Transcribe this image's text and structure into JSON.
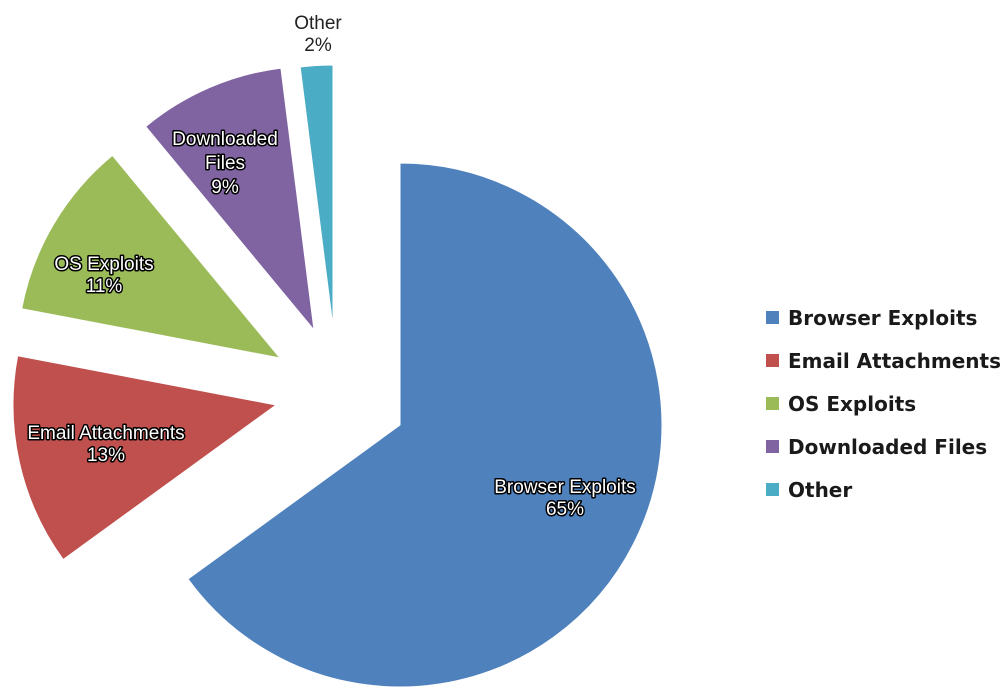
{
  "chart_data": {
    "type": "pie",
    "title": "",
    "slices": [
      {
        "name": "Browser Exploits",
        "value": 65,
        "label": "Browser Exploits",
        "pct_label": "65%",
        "color": "#4f81bd"
      },
      {
        "name": "Email Attachments",
        "value": 13,
        "label": "Email Attachments",
        "pct_label": "13%",
        "color": "#c0504d"
      },
      {
        "name": "OS Exploits",
        "value": 11,
        "label": "OS Exploits",
        "pct_label": "11%",
        "color": "#9bbb59"
      },
      {
        "name": "Downloaded Files",
        "value": 9,
        "label": "Downloaded Files",
        "pct_label": "9%",
        "color": "#8064a2"
      },
      {
        "name": "Other",
        "value": 2,
        "label": "Other",
        "pct_label": "2%",
        "color": "#4bacc6"
      }
    ],
    "exploded": true,
    "legend_position": "right"
  }
}
